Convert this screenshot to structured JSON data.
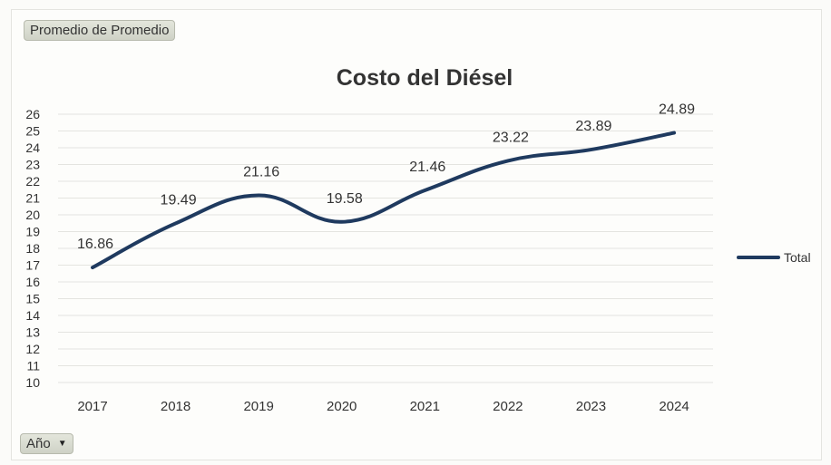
{
  "measure_button": {
    "label": "Promedio de Promedio"
  },
  "field_button": {
    "label": "Año",
    "icon": "chevron-down-icon"
  },
  "colors": {
    "line": "#1f3a5f",
    "grid": "#e4e4e0",
    "text": "#333333"
  },
  "chart_data": {
    "type": "line",
    "title": "Costo del Diésel",
    "xlabel": "",
    "ylabel": "",
    "categories": [
      "2017",
      "2018",
      "2019",
      "2020",
      "2021",
      "2022",
      "2023",
      "2024"
    ],
    "series": [
      {
        "name": "Total",
        "values": [
          16.86,
          19.49,
          21.16,
          19.58,
          21.46,
          23.22,
          23.89,
          24.89
        ]
      }
    ],
    "data_labels": [
      "16.86",
      "19.49",
      "21.16",
      "19.58",
      "21.46",
      "23.22",
      "23.89",
      "24.89"
    ],
    "ylim": [
      10,
      26
    ],
    "yticks": [
      "10",
      "11",
      "12",
      "13",
      "14",
      "15",
      "16",
      "17",
      "18",
      "19",
      "20",
      "21",
      "22",
      "23",
      "24",
      "25",
      "26"
    ],
    "grid": true,
    "legend_position": "right"
  }
}
